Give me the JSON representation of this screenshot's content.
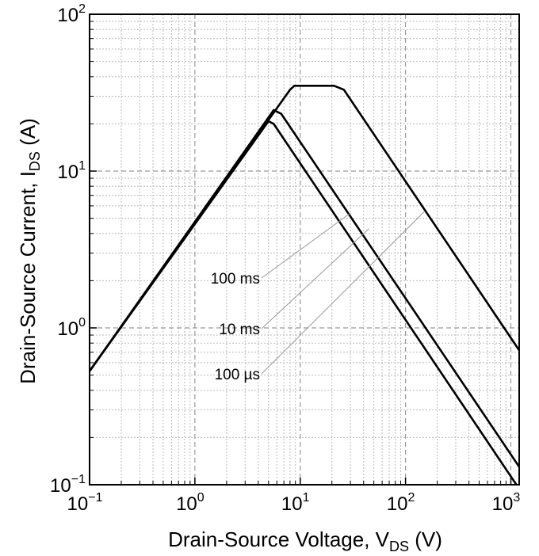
{
  "chart_data": {
    "type": "line",
    "xlabel": "Drain-Source Voltage, V",
    "xlabel_sub": "DS",
    "xlabel_unit": " (V)",
    "ylabel": "Drain-Source Current, I",
    "ylabel_sub": "DS",
    "ylabel_unit": " (A)",
    "x_scale": "log",
    "y_scale": "log",
    "xlim": [
      0.1,
      1200
    ],
    "ylim": [
      0.1,
      100
    ],
    "grid": "major dashed, minor dotted",
    "x_ticks": [
      {
        "base": "10",
        "exp": "−1",
        "value": 0.1
      },
      {
        "base": "10",
        "exp": "0",
        "value": 1
      },
      {
        "base": "10",
        "exp": "1",
        "value": 10
      },
      {
        "base": "10",
        "exp": "2",
        "value": 100
      },
      {
        "base": "10",
        "exp": "3",
        "value": 1000
      }
    ],
    "y_ticks": [
      {
        "base": "10",
        "exp": "−1",
        "value": 0.1
      },
      {
        "base": "10",
        "exp": "0",
        "value": 1
      },
      {
        "base": "10",
        "exp": "1",
        "value": 10
      },
      {
        "base": "10",
        "exp": "2",
        "value": 100
      }
    ],
    "series": [
      {
        "name": "100 ms",
        "x": [
          0.1,
          5.0,
          5.6,
          1130
        ],
        "y": [
          0.53,
          20.8,
          20.0,
          0.1
        ],
        "label_anchor": {
          "x": 30,
          "y": 5.4
        }
      },
      {
        "name": "10 ms",
        "x": [
          0.1,
          5.6,
          6.6,
          1200
        ],
        "y": [
          0.53,
          24.5,
          23.2,
          0.13
        ],
        "label_anchor": {
          "x": 45,
          "y": 4.3
        }
      },
      {
        "name": "100 µs",
        "x": [
          0.1,
          8.0,
          8.8,
          21,
          26,
          1200
        ],
        "y": [
          0.53,
          33.0,
          35.0,
          35.0,
          33.0,
          0.72
        ],
        "label_anchor": {
          "x": 150,
          "y": 5.5
        }
      }
    ],
    "line_color": "#000000",
    "grid_color": "#999999"
  }
}
